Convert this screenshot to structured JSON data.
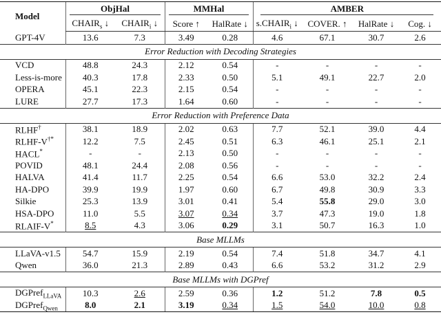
{
  "header": {
    "model": "Model",
    "groups": [
      {
        "text": "ObjHal",
        "span": 2
      },
      {
        "text": "MMHal",
        "span": 2
      },
      {
        "text": "AMBER",
        "span": 4
      }
    ],
    "columns": [
      {
        "text": "CHAIR",
        "sub": "s",
        "arrow": "↓"
      },
      {
        "text": "CHAIR",
        "sub": "i",
        "arrow": "↓"
      },
      {
        "text": "Score",
        "arrow": "↑"
      },
      {
        "text": "HalRate",
        "arrow": "↓"
      },
      {
        "text": "s.CHAIR",
        "sub": "i",
        "arrow": "↓"
      },
      {
        "text": "COVER.",
        "arrow": "↑"
      },
      {
        "text": "HalRate",
        "arrow": "↓"
      },
      {
        "text": "Cog.",
        "arrow": "↓"
      }
    ]
  },
  "sections": [
    {
      "rows": [
        {
          "model": "GPT-4V",
          "cells": [
            "13.6",
            "7.3",
            "3.49",
            "0.28",
            "4.6",
            "67.1",
            "30.7",
            "2.6"
          ]
        }
      ]
    },
    {
      "title": "Error Reduction with Decoding Strategies",
      "rows": [
        {
          "model": "VCD",
          "cells": [
            "48.8",
            "24.3",
            "2.12",
            "0.54",
            "-",
            "-",
            "-",
            "-"
          ]
        },
        {
          "model": "Less-is-more",
          "cells": [
            "40.3",
            "17.8",
            "2.33",
            "0.50",
            "5.1",
            "49.1",
            "22.7",
            "2.0"
          ]
        },
        {
          "model": "OPERA",
          "cells": [
            "45.1",
            "22.3",
            "2.15",
            "0.54",
            "-",
            "-",
            "-",
            "-"
          ]
        },
        {
          "model": "LURE",
          "cells": [
            "27.7",
            "17.3",
            "1.64",
            "0.60",
            "-",
            "-",
            "-",
            "-"
          ]
        }
      ]
    },
    {
      "title": "Error Reduction with Preference Data",
      "rows": [
        {
          "model": "RLHF",
          "sup": "†",
          "cells": [
            "38.1",
            "18.9",
            "2.02",
            "0.63",
            "7.7",
            "52.1",
            "39.0",
            "4.4"
          ]
        },
        {
          "model": "RLHF-V",
          "sup": "†*",
          "cells": [
            "12.2",
            "7.5",
            "2.45",
            "0.51",
            "6.3",
            "46.1",
            "25.1",
            "2.1"
          ]
        },
        {
          "model": "HACL",
          "sup": "*",
          "cells": [
            "-",
            "-",
            "2.13",
            "0.50",
            "-",
            "-",
            "-",
            "-"
          ]
        },
        {
          "model": "POVID",
          "cells": [
            "48.1",
            "24.4",
            "2.08",
            "0.56",
            "-",
            "-",
            "-",
            "-"
          ]
        },
        {
          "model": "HALVA",
          "cells": [
            "41.4",
            "11.7",
            "2.25",
            "0.54",
            "6.6",
            "53.0",
            "32.2",
            "2.4"
          ]
        },
        {
          "model": "HA-DPO",
          "cells": [
            "39.9",
            "19.9",
            "1.97",
            "0.60",
            "6.7",
            "49.8",
            "30.9",
            "3.3"
          ]
        },
        {
          "model": "Silkie",
          "cells": [
            "25.3",
            "13.9",
            "3.01",
            "0.41",
            "5.4",
            "55.8",
            "29.0",
            "3.0"
          ],
          "bold": [
            5
          ]
        },
        {
          "model": "HSA-DPO",
          "cells": [
            "11.0",
            "5.5",
            "3.07",
            "0.34",
            "3.7",
            "47.3",
            "19.0",
            "1.8"
          ],
          "underline": [
            2,
            3
          ]
        },
        {
          "model": "RLAIF-V",
          "sup": "*",
          "cells": [
            "8.5",
            "4.3",
            "3.06",
            "0.29",
            "3.1",
            "50.7",
            "16.3",
            "1.0"
          ],
          "bold": [
            3
          ],
          "underline": [
            0
          ]
        }
      ]
    },
    {
      "title": "Base MLLMs",
      "rows": [
        {
          "model": "LLaVA-v1.5",
          "cells": [
            "54.7",
            "15.9",
            "2.19",
            "0.54",
            "7.4",
            "51.8",
            "34.7",
            "4.1"
          ]
        },
        {
          "model": "Qwen",
          "cells": [
            "36.0",
            "21.3",
            "2.89",
            "0.43",
            "6.6",
            "53.2",
            "31.2",
            "2.9"
          ]
        }
      ]
    },
    {
      "title": "Base MLLMs with DGPref",
      "rows": [
        {
          "model": "DGPref",
          "sub": "LLaVA",
          "cells": [
            "10.3",
            "2.6",
            "2.59",
            "0.36",
            "1.2",
            "51.2",
            "7.8",
            "0.5"
          ],
          "bold": [
            4,
            6,
            7
          ],
          "underline": [
            1
          ]
        },
        {
          "model": "DGPref",
          "sub": "Qwen",
          "cells": [
            "8.0",
            "2.1",
            "3.19",
            "0.34",
            "1.5",
            "54.0",
            "10.0",
            "0.8"
          ],
          "bold": [
            0,
            1,
            2
          ],
          "underline": [
            3,
            4,
            5,
            6,
            7
          ]
        }
      ]
    }
  ]
}
